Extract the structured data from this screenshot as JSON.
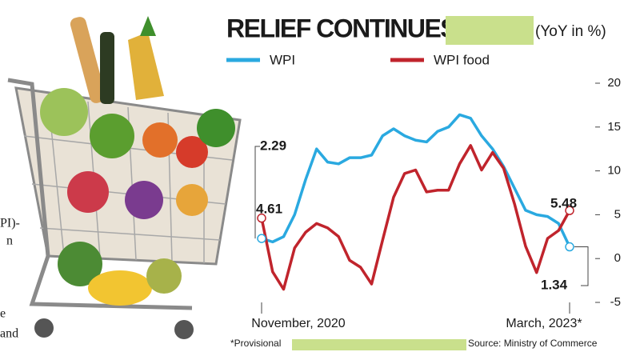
{
  "chart_data": {
    "type": "line",
    "title": "RELIEF CONTINUES",
    "subtitle": "(YoY in %)",
    "note": "*Provisional",
    "source": "Source: Ministry of Commerce",
    "side_text": [
      "PI)-",
      "n",
      "e",
      "and"
    ],
    "categories": [
      "November, 2020",
      null,
      null,
      null,
      null,
      null,
      null,
      null,
      null,
      null,
      null,
      null,
      null,
      null,
      null,
      null,
      null,
      null,
      null,
      null,
      null,
      null,
      null,
      null,
      null,
      null,
      null,
      null,
      "March, 2023*"
    ],
    "series": [
      {
        "name": "WPI",
        "color": "#2aa9e0",
        "values": [
          2.29,
          1.9,
          2.5,
          5,
          9,
          12.5,
          11,
          10.8,
          11.5,
          11.5,
          11.8,
          14,
          14.8,
          14,
          13.5,
          13.3,
          14.5,
          15,
          16.4,
          16,
          14,
          12.5,
          10.5,
          8,
          5.5,
          5,
          4.8,
          4,
          1.34
        ]
      },
      {
        "name": "WPI food",
        "color": "#c0242c",
        "values": [
          4.61,
          -1.5,
          -3.5,
          1.2,
          3,
          4,
          3.5,
          2.5,
          -0.2,
          -1,
          -2.9,
          2.1,
          7,
          9.7,
          10.1,
          7.6,
          7.8,
          7.8,
          10.8,
          12.9,
          10.1,
          12.1,
          10.3,
          6.2,
          1.4,
          -1.6,
          2.3,
          3.2,
          5.48
        ]
      }
    ],
    "ylim": [
      -5,
      20
    ],
    "yticks": [
      -5,
      0,
      5,
      10,
      15,
      20
    ],
    "highlight": "#c9e08c",
    "grid": false
  }
}
